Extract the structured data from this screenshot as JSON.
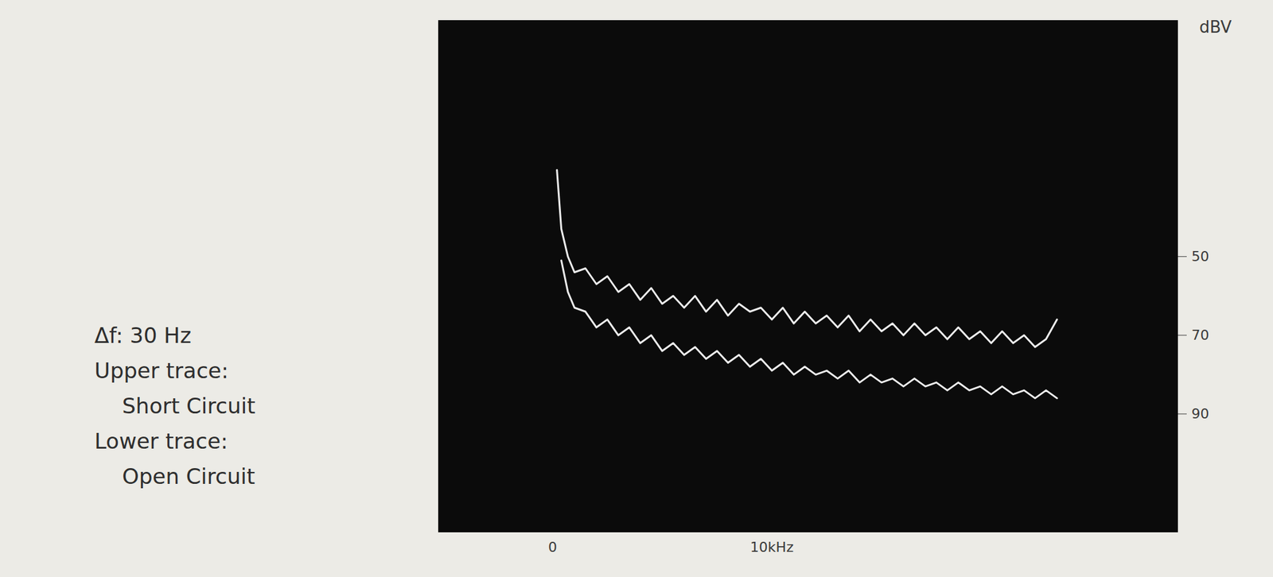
{
  "chart_data": {
    "type": "line",
    "annotations": [
      "Δf: 30 Hz"
    ],
    "ylabel": "dBV",
    "legend": "left",
    "x": [
      0.2,
      0.4,
      0.7,
      1.0,
      1.5,
      2.0,
      2.5,
      3.0,
      3.5,
      4.0,
      4.5,
      5.0,
      5.5,
      6.0,
      6.5,
      7.0,
      7.5,
      8.0,
      8.5,
      9.0,
      9.5,
      10.0,
      10.5,
      11.0,
      11.5,
      12.0,
      12.5,
      13.0,
      13.5,
      14.0,
      14.5,
      15.0,
      15.5,
      16.0,
      16.5,
      17.0,
      17.5,
      18.0,
      18.5,
      19.0,
      19.5,
      20.0,
      20.5,
      21.0,
      21.5,
      22.0,
      22.5,
      23.0
    ],
    "series": [
      {
        "trace": "Upper trace:",
        "name": "Short Circuit",
        "color": "#ececec",
        "values": [
          28,
          43,
          50,
          54,
          53,
          57,
          55,
          59,
          57,
          61,
          58,
          62,
          60,
          63,
          60,
          64,
          61,
          65,
          62,
          64,
          63,
          66,
          63,
          67,
          64,
          67,
          65,
          68,
          65,
          69,
          66,
          69,
          67,
          70,
          67,
          70,
          68,
          71,
          68,
          71,
          69,
          72,
          69,
          72,
          70,
          73,
          71,
          66
        ]
      },
      {
        "trace": "Lower trace:",
        "name": "Open Circuit",
        "color": "#ececec",
        "values": [
          null,
          51,
          59,
          63,
          64,
          68,
          66,
          70,
          68,
          72,
          70,
          74,
          72,
          75,
          73,
          76,
          74,
          77,
          75,
          78,
          76,
          79,
          77,
          80,
          78,
          80,
          79,
          81,
          79,
          82,
          80,
          82,
          81,
          83,
          81,
          83,
          82,
          84,
          82,
          84,
          83,
          85,
          83,
          85,
          84,
          86,
          84,
          86
        ]
      }
    ],
    "xlim": [
      -5.2,
      28.5
    ],
    "xticks": [
      0,
      {
        "value": 10,
        "label": "10kHz"
      }
    ],
    "ylim": [
      120,
      -10
    ],
    "yticks": [
      50,
      70,
      90
    ]
  }
}
